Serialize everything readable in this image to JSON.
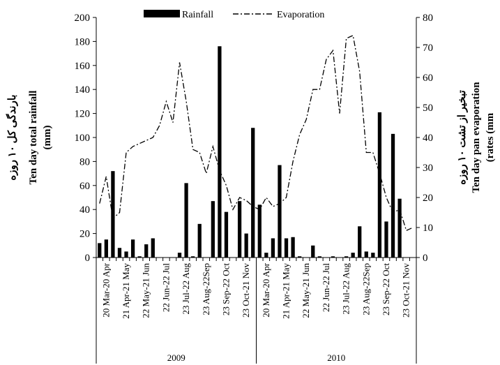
{
  "chart_data": {
    "type": "bar+line",
    "legend": {
      "rainfall_label": "Rainfall",
      "evaporation_label": "Evaporation",
      "placement": "top"
    },
    "left_axis": {
      "title_persian": "بارندگی کل ۱۰ روزه",
      "title_english": "Ten day total rainfall",
      "unit": "(mm)",
      "ylim": [
        0,
        200
      ],
      "ticks": [
        0,
        20,
        40,
        60,
        80,
        100,
        120,
        140,
        160,
        180,
        200
      ]
    },
    "right_axis": {
      "title_persian": "تبخیر از تشت ۱۰ روزه",
      "title_english": "Ten day pan evaporation",
      "unit": "(rates (mm",
      "ylim": [
        0,
        80
      ],
      "ticks": [
        0,
        10,
        20,
        30,
        40,
        50,
        60,
        70,
        80
      ]
    },
    "category_labels": [
      "20 Mar-20 Apr",
      "21 Apr-21 May",
      "22 May-21 Jun",
      "22 Jun-22 Jul",
      "23 Jul-22 Aug",
      "23 Aug-22Sep",
      "23 Sep-22 Oct",
      "23 Oct-21 Nov",
      "20 Mar-20 Apr",
      "21 Apr-21 May",
      "22 May-21 Jun",
      "22 Jun-22 Jul",
      "23 Jul-22 Aug",
      "23 Aug-22Sep",
      "23 Sep-22 Oct",
      "23 Oct-21 Nov"
    ],
    "groups": [
      {
        "label": "2009",
        "start": 0,
        "end": 24
      },
      {
        "label": "2010",
        "start": 24,
        "end": 48
      }
    ],
    "series": [
      {
        "name": "Rainfall",
        "axis": "left",
        "style": "bar",
        "color": "#000000",
        "values": [
          12,
          15,
          72,
          8,
          5,
          15,
          1,
          11,
          16,
          0,
          0,
          0,
          4,
          62,
          1,
          28,
          0,
          47,
          176,
          38,
          0,
          47,
          20,
          108,
          44,
          4,
          16,
          77,
          16,
          17,
          1,
          0,
          10,
          1,
          0,
          1,
          0,
          1,
          4,
          26,
          5,
          4,
          121,
          30,
          103,
          49,
          0,
          0
        ]
      },
      {
        "name": "Evaporation",
        "axis": "right",
        "style": "dash-dot line",
        "color": "#000000",
        "values": [
          18,
          27,
          13,
          15,
          35,
          37,
          38,
          39,
          40,
          44,
          52,
          45,
          65,
          52,
          36,
          35,
          28,
          37,
          29,
          24,
          16,
          20,
          19,
          17,
          16,
          20,
          17,
          18,
          20,
          32,
          41,
          46,
          56,
          56,
          66,
          69,
          48,
          73,
          74,
          62,
          35,
          35,
          28,
          20,
          15,
          16,
          9,
          10
        ]
      }
    ]
  }
}
